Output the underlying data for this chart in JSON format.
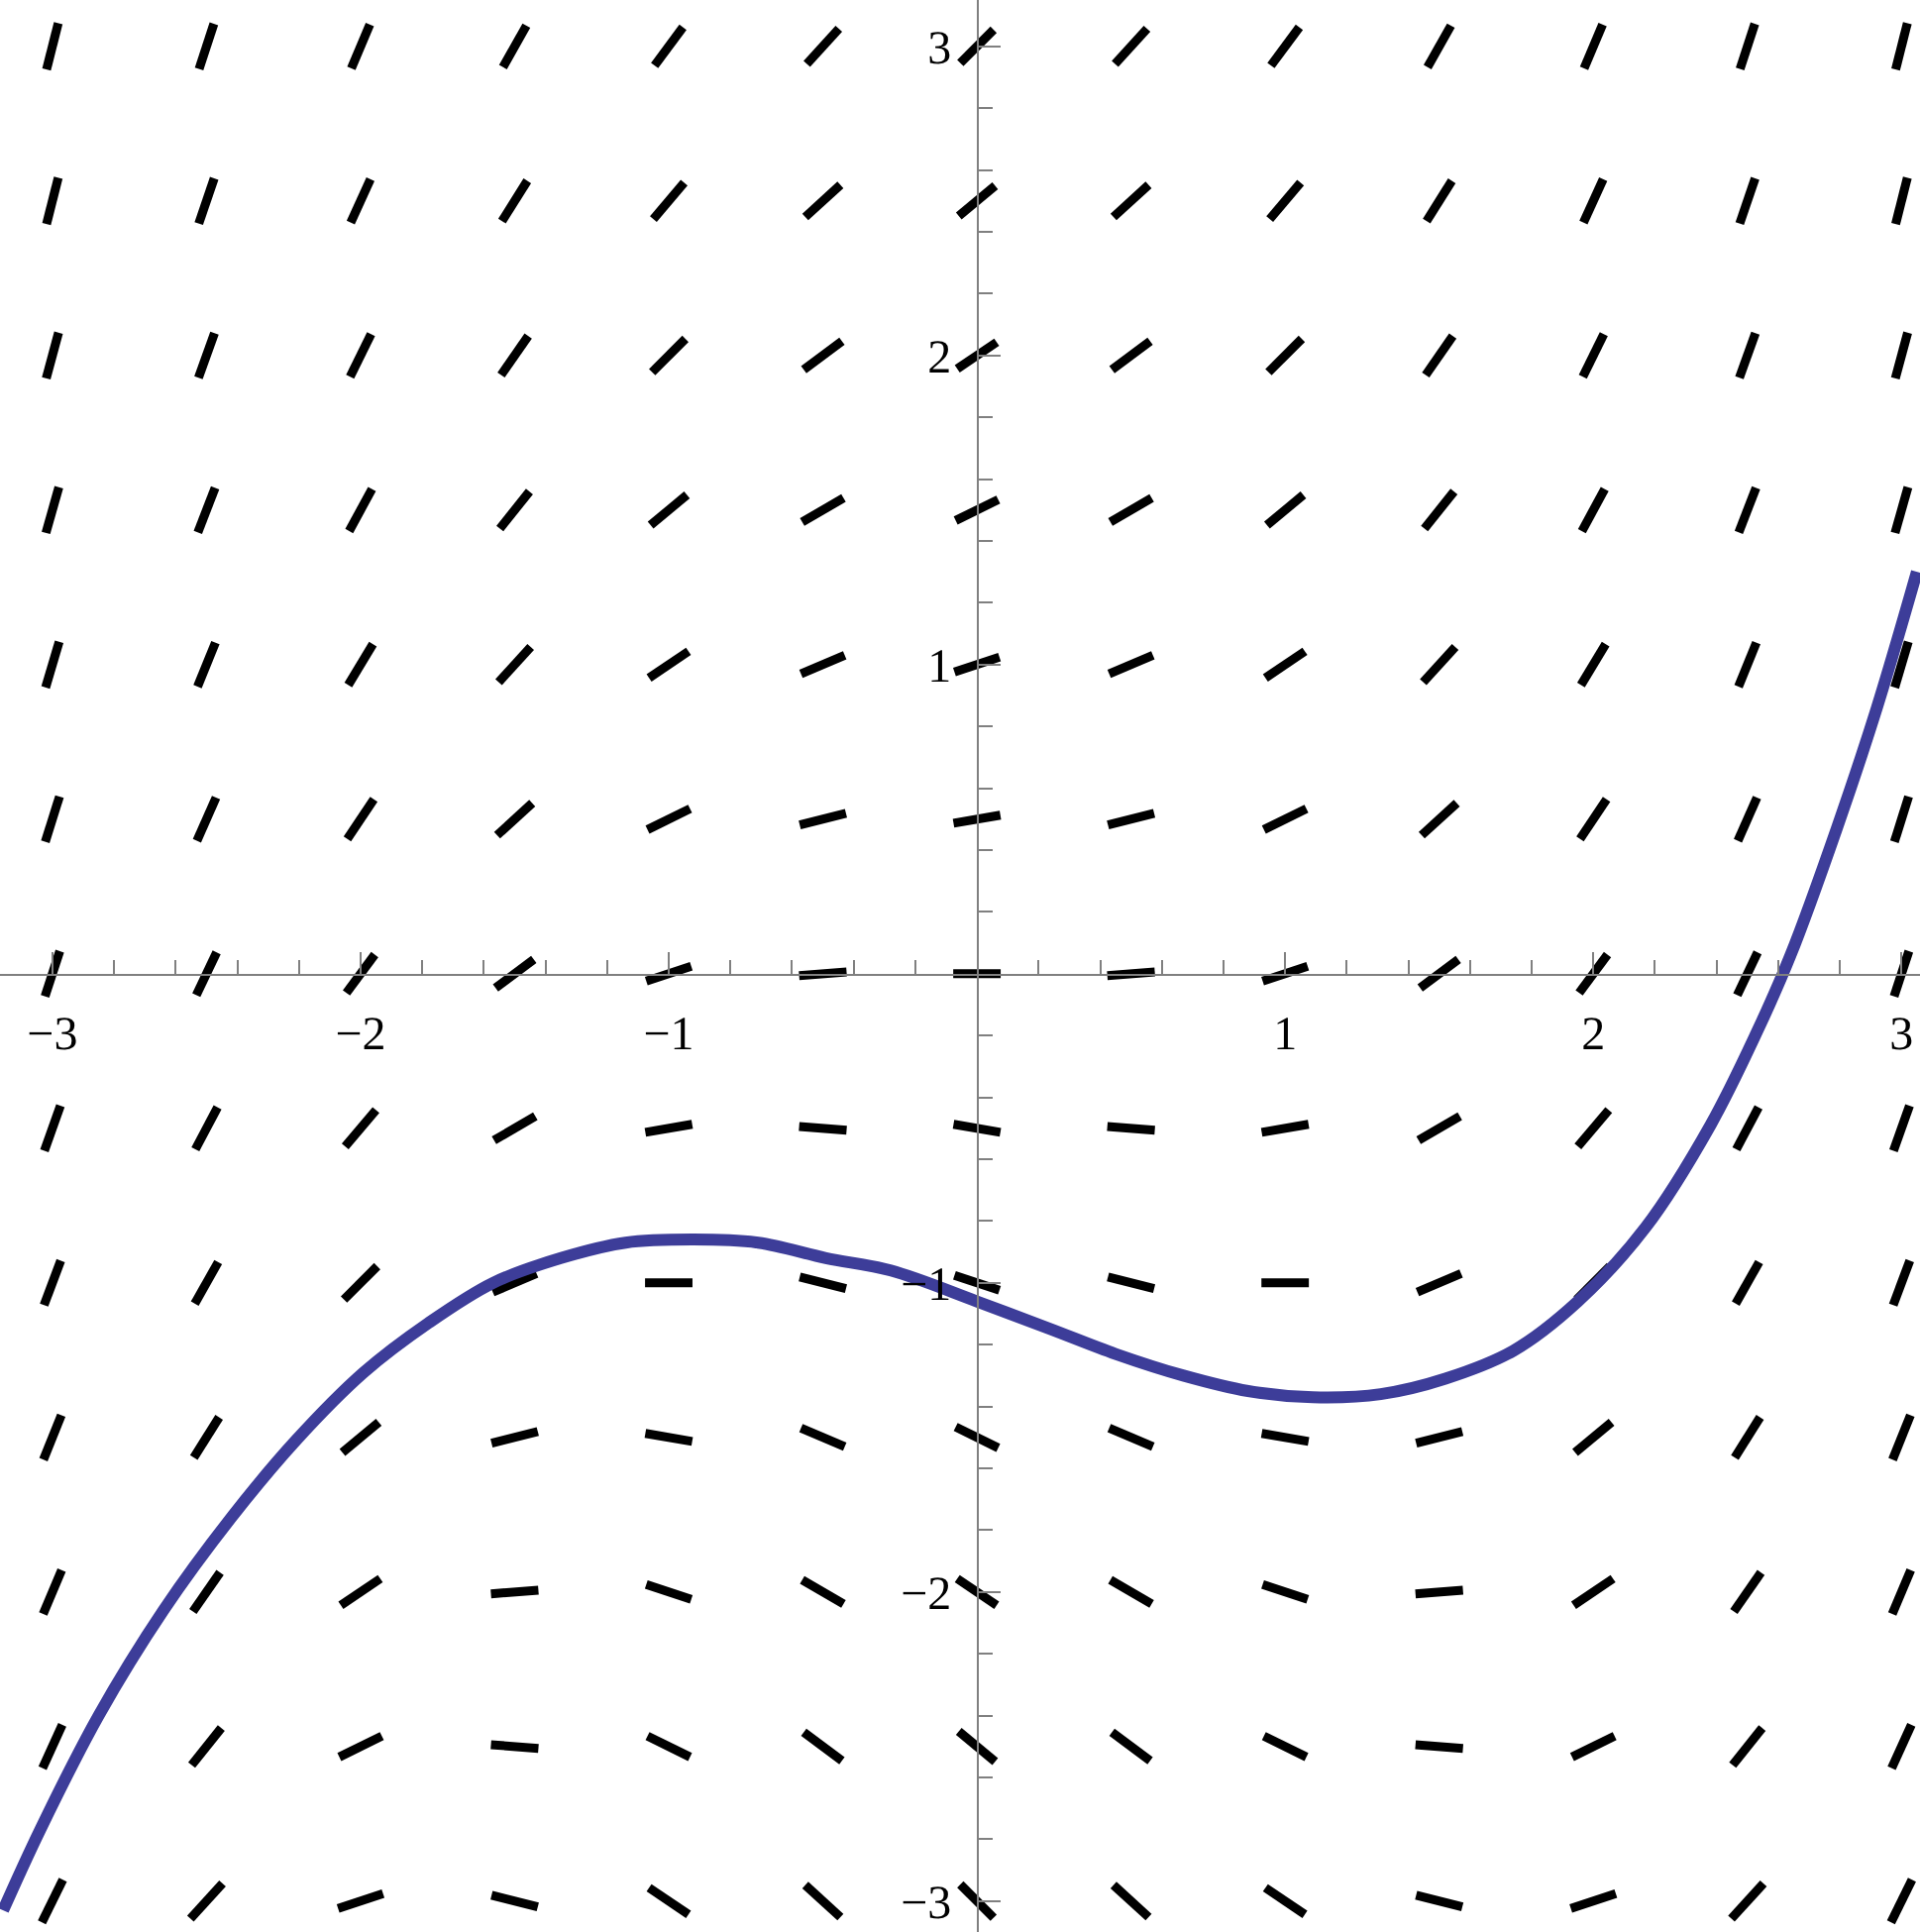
{
  "chart_data": {
    "type": "line",
    "xlim": [
      -3.17,
      3.06
    ],
    "ylim": [
      -3.1,
      3.15
    ],
    "xticks": [
      {
        "value": -3,
        "label": "−3"
      },
      {
        "value": -2.8,
        "label": null
      },
      {
        "value": -2.6,
        "label": null
      },
      {
        "value": -2.4,
        "label": null
      },
      {
        "value": -2.2,
        "label": null
      },
      {
        "value": -2,
        "label": "−2"
      },
      {
        "value": -1.8,
        "label": null
      },
      {
        "value": -1.6,
        "label": null
      },
      {
        "value": -1.4,
        "label": null
      },
      {
        "value": -1.2,
        "label": null
      },
      {
        "value": -1,
        "label": "−1"
      },
      {
        "value": -0.8,
        "label": null
      },
      {
        "value": -0.6,
        "label": null
      },
      {
        "value": -0.4,
        "label": null
      },
      {
        "value": -0.2,
        "label": null
      },
      {
        "value": 0.2,
        "label": null
      },
      {
        "value": 0.4,
        "label": null
      },
      {
        "value": 0.6,
        "label": null
      },
      {
        "value": 0.8,
        "label": null
      },
      1,
      {
        "value": 1.2,
        "label": null
      },
      {
        "value": 1.4,
        "label": null
      },
      {
        "value": 1.6,
        "label": null
      },
      {
        "value": 1.8,
        "label": null
      },
      2,
      {
        "value": 2.2,
        "label": null
      },
      {
        "value": 2.4,
        "label": null
      },
      {
        "value": 2.6,
        "label": null
      },
      {
        "value": 2.8,
        "label": null
      },
      3
    ],
    "yticks": [
      {
        "value": -3,
        "label": "−3"
      },
      {
        "value": -2.8,
        "label": null
      },
      {
        "value": -2.6,
        "label": null
      },
      {
        "value": -2.4,
        "label": null
      },
      {
        "value": -2.2,
        "label": null
      },
      {
        "value": -2,
        "label": "−2"
      },
      {
        "value": -1.8,
        "label": null
      },
      {
        "value": -1.6,
        "label": null
      },
      {
        "value": -1.4,
        "label": null
      },
      {
        "value": -1.2,
        "label": null
      },
      {
        "value": -1,
        "label": "−1"
      },
      {
        "value": -0.8,
        "label": null
      },
      {
        "value": -0.6,
        "label": null
      },
      {
        "value": -0.4,
        "label": null
      },
      {
        "value": -0.2,
        "label": null
      },
      {
        "value": 0.2,
        "label": null
      },
      {
        "value": 0.4,
        "label": null
      },
      {
        "value": 0.6,
        "label": null
      },
      {
        "value": 0.8,
        "label": null
      },
      1,
      {
        "value": 1.2,
        "label": null
      },
      {
        "value": 1.4,
        "label": null
      },
      {
        "value": 1.6,
        "label": null
      },
      {
        "value": 1.8,
        "label": null
      },
      2,
      {
        "value": 2.2,
        "label": null
      },
      {
        "value": 2.4,
        "label": null
      },
      {
        "value": 2.6,
        "label": null
      },
      {
        "value": 2.8,
        "label": null
      },
      3
    ],
    "series": [
      {
        "color": "#000000",
        "x": [
          -3.019,
          -2.981,
          -2.75,
          -2.524,
          -2.476,
          -2.25,
          -2.03,
          -1.97,
          -1.75,
          -1.538,
          -1.462,
          -1.25,
          -1.046,
          -0.954,
          -0.75,
          -0.552,
          -0.448,
          -0.25,
          -0.054,
          0.054,
          0.25,
          0.448,
          0.552,
          0.75,
          0.954,
          1.046,
          1.25,
          1.462,
          1.538,
          1.75,
          1.97,
          2.03,
          2.25,
          2.476,
          2.524,
          2.75,
          2.981,
          3.019
        ],
        "values": [
          2.925,
          3.075,
          null,
          2.927,
          3.073,
          null,
          2.929,
          3.071,
          null,
          2.933,
          3.067,
          null,
          2.938,
          3.062,
          null,
          2.943,
          3.057,
          null,
          2.946,
          3.054,
          null,
          2.943,
          3.057,
          null,
          2.938,
          3.062,
          null,
          2.933,
          3.067,
          null,
          2.929,
          3.071,
          null,
          2.927,
          3.073,
          null,
          2.925,
          3.075
        ]
      },
      {
        "color": "#000000",
        "x": [
          -3.019,
          -2.981,
          -2.75,
          -2.525,
          -2.475,
          -2.25,
          -2.032,
          -1.968,
          -1.75,
          -1.541,
          -1.459,
          -1.25,
          -1.05,
          -0.95,
          -0.75,
          -0.557,
          -0.443,
          -0.25,
          -0.059,
          0.059,
          0.25,
          0.443,
          0.557,
          0.75,
          0.95,
          1.05,
          1.25,
          1.459,
          1.541,
          1.75,
          1.968,
          2.032,
          2.25,
          2.475,
          2.525,
          2.75,
          2.981,
          3.019
        ],
        "values": [
          2.425,
          2.575,
          null,
          2.427,
          2.573,
          null,
          2.43,
          2.57,
          null,
          2.435,
          2.565,
          null,
          2.441,
          2.559,
          null,
          2.448,
          2.552,
          null,
          2.451,
          2.549,
          null,
          2.448,
          2.552,
          null,
          2.441,
          2.559,
          null,
          2.435,
          2.565,
          null,
          2.43,
          2.57,
          null,
          2.427,
          2.573,
          null,
          2.425,
          2.575
        ]
      },
      {
        "color": "#000000",
        "x": [
          -3.02,
          -2.98,
          -2.75,
          -2.526,
          -2.474,
          -2.25,
          -2.034,
          -1.966,
          -1.75,
          -1.544,
          -1.456,
          -1.25,
          -1.054,
          -0.946,
          -0.75,
          -0.562,
          -0.438,
          -0.25,
          -0.064,
          0.064,
          0.25,
          0.438,
          0.562,
          0.75,
          0.946,
          1.054,
          1.25,
          1.456,
          1.544,
          1.75,
          1.966,
          2.034,
          2.25,
          2.474,
          2.526,
          2.75,
          2.98,
          3.02
        ],
        "values": [
          1.926,
          2.074,
          null,
          1.928,
          2.072,
          null,
          1.931,
          2.069,
          null,
          1.937,
          2.063,
          null,
          1.946,
          2.054,
          null,
          1.954,
          2.046,
          null,
          1.957,
          2.043,
          null,
          1.954,
          2.046,
          null,
          1.946,
          2.054,
          null,
          1.937,
          2.063,
          null,
          1.931,
          2.069,
          null,
          1.928,
          2.072,
          null,
          1.926,
          2.074
        ]
      },
      {
        "color": "#000000",
        "x": [
          -3.021,
          -2.979,
          -2.75,
          -2.528,
          -2.472,
          -2.25,
          -2.037,
          -1.963,
          -1.75,
          -1.548,
          -1.452,
          -1.25,
          -1.059,
          -0.941,
          -0.75,
          -0.567,
          -0.433,
          -0.25,
          -0.069,
          0.069,
          0.25,
          0.433,
          0.567,
          0.75,
          0.941,
          1.059,
          1.25,
          1.452,
          1.548,
          1.75,
          1.963,
          2.037,
          2.25,
          2.472,
          2.528,
          2.75,
          2.979,
          3.021
        ],
        "values": [
          1.426,
          1.574,
          null,
          1.428,
          1.572,
          null,
          1.432,
          1.568,
          null,
          1.44,
          1.56,
          null,
          1.451,
          1.549,
          null,
          1.461,
          1.539,
          null,
          1.466,
          1.534,
          null,
          1.461,
          1.539,
          null,
          1.451,
          1.549,
          null,
          1.44,
          1.56,
          null,
          1.432,
          1.568,
          null,
          1.428,
          1.572,
          null,
          1.426,
          1.574
        ]
      },
      {
        "color": "#000000",
        "x": [
          -3.022,
          -2.978,
          -2.75,
          -2.529,
          -2.471,
          -2.25,
          -2.04,
          -1.96,
          -1.75,
          -1.552,
          -1.448,
          -1.25,
          -1.064,
          -0.936,
          -0.75,
          -0.571,
          -0.429,
          -0.25,
          -0.073,
          0.073,
          0.25,
          0.429,
          0.571,
          0.75,
          0.936,
          1.064,
          1.25,
          1.448,
          1.552,
          1.75,
          1.96,
          2.04,
          2.25,
          2.471,
          2.529,
          2.75,
          2.978,
          3.022
        ],
        "values": [
          0.926,
          1.074,
          null,
          0.929,
          1.071,
          null,
          0.934,
          1.066,
          null,
          0.943,
          1.057,
          null,
          0.957,
          1.043,
          null,
          0.97,
          1.03,
          null,
          0.976,
          1.024,
          null,
          0.97,
          1.03,
          null,
          0.957,
          1.043,
          null,
          0.943,
          1.057,
          null,
          0.934,
          1.066,
          null,
          0.929,
          1.071,
          null,
          0.926,
          1.074
        ]
      },
      {
        "color": "#000000",
        "x": [
          -3.023,
          -2.977,
          -2.75,
          -2.531,
          -2.469,
          -2.25,
          -2.043,
          -1.957,
          -1.75,
          -1.557,
          -1.443,
          -1.25,
          -1.069,
          -0.931,
          -0.75,
          -0.575,
          -0.425,
          -0.25,
          -0.076,
          0.076,
          0.25,
          0.425,
          0.575,
          0.75,
          0.931,
          1.069,
          1.25,
          1.443,
          1.557,
          1.75,
          1.957,
          2.043,
          2.25,
          2.469,
          2.531,
          2.75,
          2.977,
          3.023
        ],
        "values": [
          0.427,
          0.573,
          null,
          0.43,
          0.57,
          null,
          0.436,
          0.564,
          null,
          0.448,
          0.552,
          null,
          0.466,
          0.534,
          null,
          0.481,
          0.519,
          null,
          0.487,
          0.513,
          null,
          0.481,
          0.519,
          null,
          0.466,
          0.534,
          null,
          0.448,
          0.552,
          null,
          0.436,
          0.564,
          null,
          0.43,
          0.57,
          null,
          0.427,
          0.573
        ]
      },
      {
        "color": "#000000",
        "x": [
          -3.024,
          -2.976,
          -2.75,
          -2.533,
          -2.467,
          -2.25,
          -2.046,
          -1.954,
          -1.75,
          -1.562,
          -1.438,
          -1.25,
          -1.073,
          -0.927,
          -0.75,
          -0.577,
          -0.423,
          -0.25,
          -0.077,
          0.077,
          0.25,
          0.423,
          0.577,
          0.75,
          0.927,
          1.073,
          1.25,
          1.438,
          1.562,
          1.75,
          1.954,
          2.046,
          2.25,
          2.467,
          2.533,
          2.75,
          2.976,
          3.024
        ],
        "values": [
          -0.073,
          0.073,
          null,
          -0.069,
          0.069,
          null,
          -0.062,
          0.062,
          null,
          -0.046,
          0.046,
          null,
          -0.024,
          0.024,
          null,
          -0.006,
          0.006,
          null,
          0,
          0,
          null,
          -0.006,
          0.006,
          null,
          -0.024,
          0.024,
          null,
          -0.046,
          0.046,
          null,
          -0.062,
          0.062,
          null,
          -0.069,
          0.069,
          null,
          -0.073,
          0.073
        ]
      },
      {
        "color": "#000000",
        "x": [
          -3.026,
          -2.974,
          -2.75,
          -2.536,
          -2.464,
          -2.25,
          -2.05,
          -1.95,
          -1.75,
          -1.567,
          -1.433,
          -1.25,
          -1.076,
          -0.924,
          -0.75,
          -0.577,
          -0.423,
          -0.25,
          -0.076,
          0.076,
          0.25,
          0.423,
          0.577,
          0.75,
          0.924,
          1.076,
          1.25,
          1.433,
          1.567,
          1.75,
          1.95,
          2.05,
          2.25,
          2.464,
          2.536,
          2.75,
          2.974,
          3.026
        ],
        "values": [
          -0.573,
          -0.427,
          null,
          -0.568,
          -0.432,
          null,
          -0.559,
          -0.441,
          null,
          -0.539,
          -0.461,
          null,
          -0.513,
          -0.487,
          null,
          -0.494,
          -0.506,
          null,
          -0.487,
          -0.513,
          null,
          -0.494,
          -0.506,
          null,
          -0.513,
          -0.487,
          null,
          -0.539,
          -0.461,
          null,
          -0.559,
          -0.441,
          null,
          -0.568,
          -0.432,
          null,
          -0.573,
          -0.427
        ]
      },
      {
        "color": "#000000",
        "x": [
          -3.027,
          -2.973,
          -2.75,
          -2.538,
          -2.462,
          -2.25,
          -2.054,
          -1.946,
          -1.75,
          -1.571,
          -1.429,
          -1.25,
          -1.077,
          -0.923,
          -0.75,
          -0.575,
          -0.425,
          -0.25,
          -0.073,
          0.073,
          0.25,
          0.425,
          0.575,
          0.75,
          0.923,
          1.077,
          1.25,
          1.429,
          1.571,
          1.75,
          1.946,
          2.054,
          2.25,
          2.462,
          2.538,
          2.75,
          2.973,
          3.027
        ],
        "values": [
          -1.072,
          -0.928,
          null,
          -1.067,
          -0.933,
          null,
          -1.054,
          -0.946,
          null,
          -1.03,
          -0.97,
          null,
          -1,
          -1,
          null,
          -0.981,
          -1.019,
          null,
          -0.976,
          -1.024,
          null,
          -0.981,
          -1.019,
          null,
          -1,
          -1,
          null,
          -1.03,
          -0.97,
          null,
          -1.054,
          -0.946,
          null,
          -1.067,
          -0.933,
          null,
          -1.072,
          -0.928
        ]
      },
      {
        "color": "#000000",
        "x": [
          -3.029,
          -2.971,
          -2.75,
          -2.541,
          -2.459,
          -2.25,
          -2.059,
          -1.941,
          -1.75,
          -1.575,
          -1.425,
          -1.25,
          -1.076,
          -0.924,
          -0.75,
          -0.571,
          -0.429,
          -0.25,
          -0.069,
          0.069,
          0.25,
          0.429,
          0.571,
          0.75,
          0.924,
          1.076,
          1.25,
          1.425,
          1.575,
          1.75,
          1.941,
          2.059,
          2.25,
          2.459,
          2.541,
          2.75,
          2.971,
          3.029
        ],
        "values": [
          -1.572,
          -1.428,
          null,
          -1.565,
          -1.435,
          null,
          -1.549,
          -1.451,
          null,
          -1.519,
          -1.481,
          null,
          -1.487,
          -1.513,
          null,
          -1.47,
          -1.53,
          null,
          -1.466,
          -1.534,
          null,
          -1.47,
          -1.53,
          null,
          -1.487,
          -1.513,
          null,
          -1.519,
          -1.481,
          null,
          -1.549,
          -1.451,
          null,
          -1.565,
          -1.435,
          null,
          -1.572,
          -1.428
        ]
      },
      {
        "color": "#000000",
        "x": [
          -3.03,
          -2.97,
          -2.75,
          -2.544,
          -2.456,
          -2.25,
          -2.064,
          -1.936,
          -1.75,
          -1.577,
          -1.423,
          -1.25,
          -1.073,
          -0.927,
          -0.75,
          -0.567,
          -0.433,
          -0.25,
          -0.064,
          0.064,
          0.25,
          0.433,
          0.567,
          0.75,
          0.927,
          1.073,
          1.25,
          1.423,
          1.577,
          1.75,
          1.936,
          2.064,
          2.25,
          2.456,
          2.544,
          2.75,
          2.97,
          3.03
        ],
        "values": [
          -2.071,
          -1.929,
          null,
          -2.063,
          -1.937,
          null,
          -2.043,
          -1.957,
          null,
          -2.006,
          -1.994,
          null,
          -1.976,
          -2.024,
          null,
          -1.961,
          -2.039,
          null,
          -1.957,
          -2.043,
          null,
          -1.961,
          -2.039,
          null,
          -1.976,
          -2.024,
          null,
          -2.006,
          -1.994,
          null,
          -2.043,
          -1.957,
          null,
          -2.063,
          -1.937,
          null,
          -2.071,
          -1.929
        ]
      },
      {
        "color": "#000000",
        "x": [
          -3.032,
          -2.968,
          -2.75,
          -2.548,
          -2.452,
          -2.25,
          -2.069,
          -1.931,
          -1.75,
          -1.577,
          -1.423,
          -1.25,
          -1.069,
          -0.931,
          -0.75,
          -0.562,
          -0.438,
          -0.25,
          -0.059,
          0.059,
          0.25,
          0.438,
          0.562,
          0.75,
          0.931,
          1.069,
          1.25,
          1.423,
          1.577,
          1.75,
          1.931,
          2.069,
          2.25,
          2.452,
          2.548,
          2.75,
          2.968,
          3.032
        ],
        "values": [
          -2.57,
          -2.43,
          null,
          -2.56,
          -2.44,
          null,
          -2.534,
          -2.466,
          null,
          -2.494,
          -2.506,
          null,
          -2.466,
          -2.534,
          null,
          -2.454,
          -2.546,
          null,
          -2.451,
          -2.549,
          null,
          -2.454,
          -2.546,
          null,
          -2.466,
          -2.534,
          null,
          -2.494,
          -2.506,
          null,
          -2.534,
          -2.466,
          null,
          -2.56,
          -2.44,
          null,
          -2.57,
          -2.43
        ]
      },
      {
        "color": "#000000",
        "x": [
          -3.034,
          -2.966,
          -2.75,
          -2.552,
          -2.448,
          -2.25,
          -2.073,
          -1.927,
          -1.75,
          -1.575,
          -1.425,
          -1.25,
          -1.064,
          -0.936,
          -0.75,
          -0.557,
          -0.443,
          -0.25,
          -0.054,
          0.054,
          0.25,
          0.443,
          0.557,
          0.75,
          0.936,
          1.064,
          1.25,
          1.425,
          1.575,
          1.75,
          1.927,
          2.073,
          2.25,
          2.448,
          2.552,
          2.75,
          2.966,
          3.034
        ],
        "values": [
          -3.069,
          -2.931,
          null,
          -3.057,
          -2.943,
          null,
          -3.024,
          -2.976,
          null,
          -2.981,
          -3.019,
          null,
          -2.957,
          -3.043,
          null,
          -2.948,
          -3.052,
          null,
          -2.946,
          -3.054,
          null,
          -2.948,
          -3.052,
          null,
          -2.957,
          -3.043,
          null,
          -2.981,
          -3.019,
          null,
          -3.024,
          -2.976,
          null,
          -3.057,
          -2.943,
          null,
          -3.069,
          -2.931
        ]
      },
      {
        "color": "#3d3d99",
        "x": [
          -3.16,
          -3.04,
          -2.85,
          -2.64,
          -2.42,
          -2.21,
          -1.99,
          -1.78,
          -1.57,
          -1.35,
          -1.14,
          -0.92,
          -0.71,
          -0.49,
          -0.28,
          0,
          0.24,
          0.45,
          0.67,
          0.88,
          1.09,
          1.31,
          1.52,
          1.74,
          1.95,
          2.17,
          2.38,
          2.53,
          2.64,
          2.79,
          2.92,
          3.05
        ],
        "values": [
          -3.03,
          -2.77,
          -2.4,
          -2.06,
          -1.76,
          -1.51,
          -1.29,
          -1.13,
          -1.0,
          -0.92,
          -0.87,
          -0.86,
          -0.87,
          -0.92,
          -0.96,
          -1.06,
          -1.15,
          -1.23,
          -1.3,
          -1.35,
          -1.37,
          -1.36,
          -1.31,
          -1.22,
          -1.06,
          -0.82,
          -0.49,
          -0.19,
          0.06,
          0.47,
          0.86,
          1.3
        ]
      }
    ]
  }
}
